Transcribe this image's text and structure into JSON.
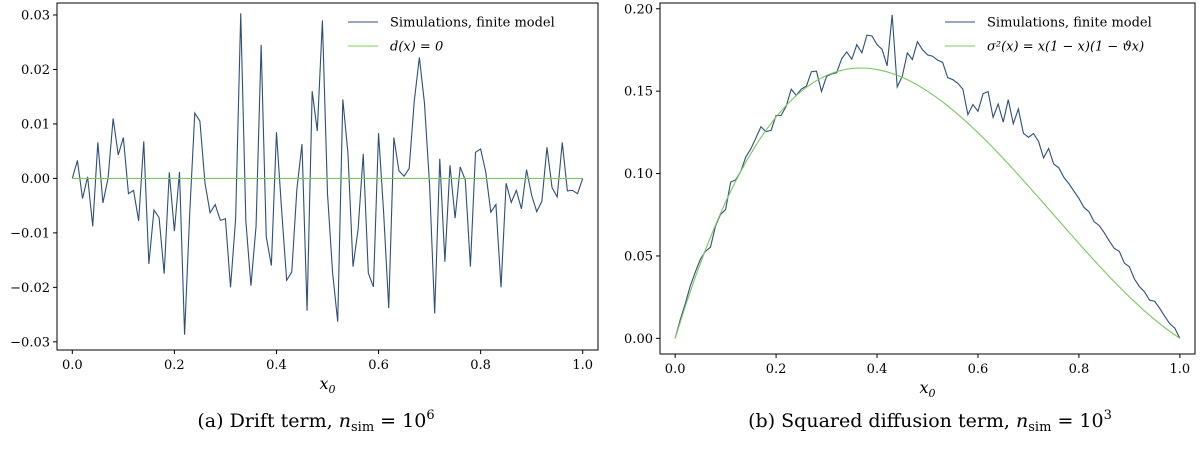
{
  "colors": {
    "simulation": "#2c4f7c",
    "theory": "#7cc860"
  },
  "panels": [
    {
      "caption": "(a) Drift term, n_sim = 10^6",
      "caption_parts": {
        "prefix": "(a) Drift term, ",
        "var": "n",
        "sub": "sim",
        "eq": " = 10",
        "sup": "6"
      },
      "xlabel": "x_0",
      "legend": [
        "Simulations, finite model",
        "d(x) = 0"
      ]
    },
    {
      "caption": "(b) Squared diffusion term, n_sim = 10^3",
      "caption_parts": {
        "prefix": "(b) Squared diffusion term, ",
        "var": "n",
        "sub": "sim",
        "eq": " = 10",
        "sup": "3"
      },
      "xlabel": "x_0",
      "legend": [
        "Simulations, finite model",
        "σ²(x) = x(1 − x)(1 − ϑx)"
      ]
    }
  ],
  "chart_data": [
    {
      "type": "line",
      "title": "",
      "xlabel": "x_0",
      "ylabel": "",
      "xlim": [
        -0.03,
        1.03
      ],
      "ylim": [
        -0.0315,
        0.0322
      ],
      "xticks": [
        0.0,
        0.2,
        0.4,
        0.6,
        0.8,
        1.0
      ],
      "xtick_labels": [
        "0.0",
        "0.2",
        "0.4",
        "0.6",
        "0.8",
        "1.0"
      ],
      "yticks": [
        -0.03,
        -0.02,
        -0.01,
        0.0,
        0.01,
        0.02,
        0.03
      ],
      "ytick_labels": [
        "−0.03",
        "−0.02",
        "−0.01",
        "0.00",
        "0.01",
        "0.02",
        "0.03"
      ],
      "legend_position": "top-right",
      "grid": false,
      "series": [
        {
          "name": "Simulations, finite model",
          "color": "#2c4f7c",
          "x": [
            0.0,
            0.01,
            0.02,
            0.03,
            0.04,
            0.05,
            0.06,
            0.07,
            0.08,
            0.09,
            0.1,
            0.11,
            0.12,
            0.13,
            0.14,
            0.15,
            0.16,
            0.17,
            0.18,
            0.19,
            0.2,
            0.21,
            0.22,
            0.23,
            0.24,
            0.25,
            0.26,
            0.27,
            0.28,
            0.29,
            0.3,
            0.31,
            0.32,
            0.33,
            0.34,
            0.35,
            0.36,
            0.37,
            0.38,
            0.39,
            0.4,
            0.41,
            0.42,
            0.43,
            0.44,
            0.45,
            0.46,
            0.47,
            0.48,
            0.49,
            0.5,
            0.51,
            0.52,
            0.53,
            0.54,
            0.55,
            0.56,
            0.57,
            0.58,
            0.59,
            0.6,
            0.61,
            0.62,
            0.63,
            0.64,
            0.65,
            0.66,
            0.67,
            0.68,
            0.69,
            0.7,
            0.71,
            0.72,
            0.73,
            0.74,
            0.75,
            0.76,
            0.77,
            0.78,
            0.79,
            0.8,
            0.81,
            0.82,
            0.83,
            0.84,
            0.85,
            0.86,
            0.87,
            0.88,
            0.89,
            0.9,
            0.91,
            0.92,
            0.93,
            0.94,
            0.95,
            0.96,
            0.97,
            0.98,
            0.99,
            1.0
          ],
          "y": [
            0.0,
            0.0033,
            -0.0037,
            0.0003,
            -0.0088,
            0.0066,
            -0.0045,
            0.0,
            0.011,
            0.0043,
            0.0075,
            -0.0028,
            -0.0022,
            -0.0078,
            0.0068,
            -0.0157,
            -0.0058,
            -0.0072,
            -0.0175,
            0.0011,
            -0.0097,
            0.0012,
            -0.0287,
            -0.0065,
            0.012,
            0.0105,
            -0.0009,
            -0.0063,
            -0.0048,
            -0.0077,
            -0.0074,
            -0.02,
            -0.0074,
            0.0303,
            -0.0078,
            -0.0197,
            -0.0088,
            0.0245,
            -0.0107,
            -0.016,
            0.0085,
            -0.0057,
            -0.0187,
            -0.0172,
            -0.002,
            0.0063,
            -0.0243,
            0.016,
            0.0087,
            0.029,
            -0.0028,
            -0.0173,
            -0.0263,
            0.0145,
            0.0047,
            -0.0162,
            -0.0093,
            0.0045,
            -0.0174,
            -0.0199,
            0.0083,
            -0.0063,
            -0.0238,
            0.0075,
            0.0014,
            0.0004,
            0.0018,
            0.0142,
            0.0222,
            0.0138,
            -0.0012,
            -0.0248,
            0.0036,
            -0.0153,
            0.0024,
            -0.0073,
            0.0021,
            -0.0003,
            -0.0162,
            0.0048,
            0.0054,
            0.0012,
            -0.0062,
            -0.0048,
            -0.02,
            -0.0009,
            -0.0044,
            -0.0022,
            -0.0056,
            0.0016,
            -0.0031,
            -0.0061,
            -0.0042,
            0.0057,
            -0.0017,
            -0.0034,
            0.0066,
            -0.0023,
            -0.0022,
            -0.0028,
            0.0
          ]
        },
        {
          "name": "d(x) = 0",
          "color": "#7cc860",
          "x": [
            0.0,
            1.0
          ],
          "y": [
            0.0,
            0.0
          ]
        }
      ]
    },
    {
      "type": "line",
      "title": "",
      "xlabel": "x_0",
      "ylabel": "",
      "xlim": [
        -0.03,
        1.03
      ],
      "ylim": [
        -0.0095,
        0.2035
      ],
      "xticks": [
        0.0,
        0.2,
        0.4,
        0.6,
        0.8,
        1.0
      ],
      "xtick_labels": [
        "0.0",
        "0.2",
        "0.4",
        "0.6",
        "0.8",
        "1.0"
      ],
      "yticks": [
        0.0,
        0.05,
        0.1,
        0.15,
        0.2
      ],
      "ytick_labels": [
        "0.00",
        "0.05",
        "0.10",
        "0.15",
        "0.20"
      ],
      "legend_position": "top-right",
      "grid": false,
      "series": [
        {
          "name": "Simulations, finite model",
          "color": "#2c4f7c",
          "x": [
            0.0,
            0.01,
            0.02,
            0.03,
            0.04,
            0.05,
            0.06,
            0.07,
            0.08,
            0.09,
            0.1,
            0.11,
            0.12,
            0.13,
            0.14,
            0.15,
            0.16,
            0.17,
            0.18,
            0.19,
            0.2,
            0.21,
            0.22,
            0.23,
            0.24,
            0.25,
            0.26,
            0.27,
            0.28,
            0.29,
            0.3,
            0.31,
            0.32,
            0.33,
            0.34,
            0.35,
            0.36,
            0.37,
            0.38,
            0.39,
            0.4,
            0.41,
            0.42,
            0.43,
            0.44,
            0.45,
            0.46,
            0.47,
            0.48,
            0.49,
            0.5,
            0.51,
            0.52,
            0.53,
            0.54,
            0.55,
            0.56,
            0.57,
            0.58,
            0.59,
            0.6,
            0.61,
            0.62,
            0.63,
            0.64,
            0.65,
            0.66,
            0.67,
            0.68,
            0.69,
            0.7,
            0.71,
            0.72,
            0.73,
            0.74,
            0.75,
            0.76,
            0.77,
            0.78,
            0.79,
            0.8,
            0.81,
            0.82,
            0.83,
            0.84,
            0.85,
            0.86,
            0.87,
            0.88,
            0.89,
            0.9,
            0.91,
            0.92,
            0.93,
            0.94,
            0.95,
            0.96,
            0.97,
            0.98,
            0.99,
            1.0
          ],
          "y": [
            0.0,
            0.0112,
            0.021,
            0.0318,
            0.0402,
            0.048,
            0.0528,
            0.0553,
            0.0682,
            0.0752,
            0.0782,
            0.0948,
            0.0962,
            0.1012,
            0.1101,
            0.115,
            0.1216,
            0.1284,
            0.1254,
            0.1262,
            0.1352,
            0.1353,
            0.1408,
            0.1512,
            0.1474,
            0.1513,
            0.153,
            0.1618,
            0.1622,
            0.1498,
            0.159,
            0.1604,
            0.1612,
            0.1697,
            0.1738,
            0.1694,
            0.1782,
            0.1733,
            0.184,
            0.1835,
            0.1782,
            0.1754,
            0.1654,
            0.1963,
            0.1525,
            0.159,
            0.1732,
            0.1692,
            0.18,
            0.1752,
            0.172,
            0.1712,
            0.1688,
            0.1675,
            0.1582,
            0.157,
            0.1548,
            0.1512,
            0.1358,
            0.1419,
            0.1378,
            0.1484,
            0.1498,
            0.1341,
            0.1422,
            0.1312,
            0.1448,
            0.1303,
            0.1392,
            0.1244,
            0.122,
            0.1243,
            0.1195,
            0.1095,
            0.1152,
            0.1058,
            0.1035,
            0.0978,
            0.0939,
            0.0894,
            0.0849,
            0.0795,
            0.0768,
            0.0708,
            0.0685,
            0.0642,
            0.0592,
            0.0546,
            0.0528,
            0.0457,
            0.0434,
            0.036,
            0.0314,
            0.0282,
            0.0232,
            0.0225,
            0.0182,
            0.0134,
            0.0089,
            0.0062,
            0.0
          ]
        },
        {
          "name": "σ²(x) = x(1 − x)(1 − ϑx)",
          "color": "#7cc860",
          "function": "x*(1-x)*(1-0.8*x)",
          "x": [
            0.0,
            0.02,
            0.04,
            0.06,
            0.08,
            0.1,
            0.12,
            0.14,
            0.16,
            0.18,
            0.2,
            0.22,
            0.24,
            0.26,
            0.28,
            0.3,
            0.32,
            0.34,
            0.36,
            0.38,
            0.4,
            0.42,
            0.44,
            0.46,
            0.48,
            0.5,
            0.52,
            0.54,
            0.56,
            0.58,
            0.6,
            0.62,
            0.64,
            0.66,
            0.68,
            0.7,
            0.72,
            0.74,
            0.76,
            0.78,
            0.8,
            0.82,
            0.84,
            0.86,
            0.88,
            0.9,
            0.92,
            0.94,
            0.96,
            0.98,
            1.0
          ]
        }
      ]
    }
  ]
}
